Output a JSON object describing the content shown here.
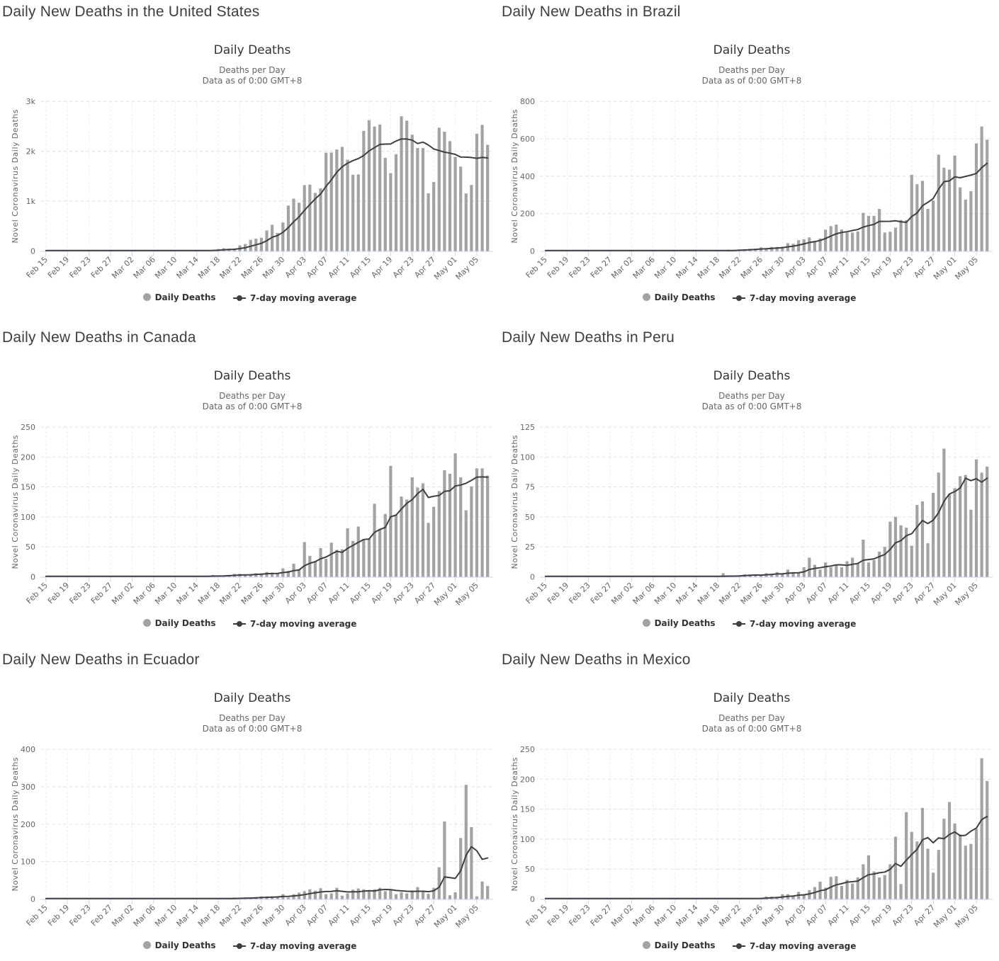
{
  "chart_common": {
    "title": "Daily Deaths",
    "subtitle_line1": "Deaths per Day",
    "subtitle_line2": "Data as of 0:00 GMT+8",
    "y_axis_title": "Novel Coronavirus Daily Deaths",
    "legend_daily": "Daily Deaths",
    "legend_ma": "7-day moving average",
    "x_tick_labels": [
      "Feb 15",
      "Feb 19",
      "Feb 23",
      "Feb 27",
      "Mar 02",
      "Mar 06",
      "Mar 10",
      "Mar 14",
      "Mar 18",
      "Mar 22",
      "Mar 26",
      "Mar 30",
      "Apr 03",
      "Apr 07",
      "Apr 11",
      "Apr 15",
      "Apr 19",
      "Apr 23",
      "Apr 27",
      "May 01",
      "May 05"
    ],
    "x_tick_step_days": 4,
    "date_start": "Feb 15",
    "date_end": "May 07",
    "colors": {
      "bar": "#a3a3a3",
      "moving_average_line": "#3f3f3f",
      "title": "#333333",
      "subtitle": "#666666",
      "axis_labels": "#666666",
      "axis_line": "#ccd6eb",
      "gridline": "#e2e2e2",
      "vertical_gridline": "#ececec",
      "heading": "#3e3e42",
      "legend_text": "#333333"
    }
  },
  "chart_data": [
    {
      "type": "bar",
      "country": "United States",
      "heading": "Daily New Deaths in the United States",
      "title": "Daily Deaths",
      "xlabel": "",
      "ylabel": "Novel Coronavirus Daily Deaths",
      "ylim": [
        0,
        3000
      ],
      "y_ticks": [
        0,
        1000,
        2000,
        3000
      ],
      "y_tick_labels": [
        "0",
        "1k",
        "2k",
        "3k"
      ],
      "series": [
        {
          "name": "Daily Deaths",
          "values": [
            0,
            0,
            0,
            0,
            0,
            0,
            0,
            0,
            0,
            0,
            0,
            0,
            0,
            0,
            1,
            1,
            4,
            3,
            2,
            1,
            3,
            4,
            3,
            4,
            4,
            8,
            3,
            9,
            11,
            11,
            18,
            23,
            41,
            57,
            49,
            46,
            113,
            140,
            225,
            247,
            268,
            411,
            525,
            363,
            573,
            912,
            1049,
            968,
            1321,
            1331,
            1165,
            1255,
            1970,
            1973,
            2035,
            2087,
            1830,
            1528,
            1535,
            2407,
            2621,
            2494,
            2535,
            1867,
            1561,
            1939,
            2699,
            2613,
            2331,
            2065,
            2065,
            1157,
            1384,
            2470,
            2390,
            2201,
            1883,
            1691,
            1154,
            1324,
            2350,
            2528,
            2129
          ]
        },
        {
          "name": "7-day moving average",
          "derived": "trailing 7-day mean of Daily Deaths"
        }
      ]
    },
    {
      "type": "bar",
      "country": "Brazil",
      "heading": "Daily New Deaths in Brazil",
      "title": "Daily Deaths",
      "xlabel": "",
      "ylabel": "Novel Coronavirus Daily Deaths",
      "ylim": [
        0,
        800
      ],
      "y_ticks": [
        0,
        200,
        400,
        600,
        800
      ],
      "y_tick_labels": [
        "0",
        "200",
        "400",
        "600",
        "800"
      ],
      "series": [
        {
          "name": "Daily Deaths",
          "values": [
            0,
            0,
            0,
            0,
            0,
            0,
            0,
            0,
            0,
            0,
            0,
            0,
            0,
            0,
            0,
            0,
            0,
            0,
            0,
            0,
            0,
            0,
            0,
            0,
            0,
            0,
            0,
            0,
            0,
            0,
            0,
            1,
            2,
            3,
            7,
            7,
            9,
            9,
            12,
            13,
            20,
            15,
            22,
            22,
            23,
            42,
            39,
            58,
            63,
            73,
            54,
            67,
            114,
            133,
            141,
            115,
            99,
            99,
            105,
            204,
            188,
            188,
            225,
            99,
            103,
            125,
            166,
            165,
            407,
            357,
            375,
            225,
            270,
            515,
            445,
            435,
            510,
            340,
            275,
            320,
            575,
            665,
            595
          ]
        },
        {
          "name": "7-day moving average",
          "derived": "trailing 7-day mean of Daily Deaths"
        }
      ]
    },
    {
      "type": "bar",
      "country": "Canada",
      "heading": "Daily New Deaths in Canada",
      "title": "Daily Deaths",
      "xlabel": "",
      "ylabel": "Novel Coronavirus Daily Deaths",
      "ylim": [
        0,
        250
      ],
      "y_ticks": [
        0,
        50,
        100,
        150,
        200,
        250
      ],
      "y_tick_labels": [
        "0",
        "50",
        "100",
        "150",
        "200",
        "250"
      ],
      "series": [
        {
          "name": "Daily Deaths",
          "values": [
            0,
            0,
            0,
            0,
            0,
            0,
            0,
            0,
            0,
            0,
            0,
            0,
            0,
            0,
            0,
            0,
            0,
            0,
            0,
            0,
            0,
            0,
            1,
            1,
            0,
            1,
            1,
            0,
            1,
            1,
            1,
            3,
            2,
            2,
            3,
            5,
            5,
            3,
            4,
            6,
            5,
            8,
            7,
            6,
            14,
            10,
            22,
            13,
            58,
            35,
            25,
            48,
            30,
            57,
            45,
            46,
            81,
            60,
            84,
            63,
            63,
            122,
            80,
            105,
            185,
            103,
            134,
            129,
            166,
            149,
            156,
            90,
            117,
            143,
            178,
            172,
            206,
            166,
            111,
            151,
            181,
            181,
            169
          ]
        },
        {
          "name": "7-day moving average",
          "derived": "trailing 7-day mean of Daily Deaths"
        }
      ]
    },
    {
      "type": "bar",
      "country": "Peru",
      "heading": "Daily New Deaths in Peru",
      "title": "Daily Deaths",
      "xlabel": "",
      "ylabel": "Novel Coronavirus Daily Deaths",
      "ylim": [
        0,
        125
      ],
      "y_ticks": [
        0,
        25,
        50,
        75,
        100,
        125
      ],
      "y_tick_labels": [
        "0",
        "25",
        "50",
        "75",
        "100",
        "125"
      ],
      "series": [
        {
          "name": "Daily Deaths",
          "values": [
            0,
            0,
            0,
            0,
            0,
            0,
            0,
            0,
            0,
            0,
            0,
            0,
            0,
            0,
            0,
            0,
            0,
            0,
            0,
            0,
            0,
            0,
            0,
            0,
            0,
            0,
            0,
            0,
            0,
            0,
            0,
            0,
            0,
            3,
            1,
            0,
            1,
            2,
            2,
            2,
            2,
            3,
            2,
            4,
            2,
            6,
            4,
            3,
            8,
            16,
            10,
            6,
            12,
            8,
            10,
            8,
            13,
            16,
            11,
            31,
            12,
            14,
            21,
            25,
            46,
            50,
            43,
            41,
            26,
            60,
            63,
            28,
            70,
            87,
            107,
            69,
            74,
            84,
            85,
            56,
            98,
            87,
            92
          ]
        },
        {
          "name": "7-day moving average",
          "derived": "trailing 7-day mean of Daily Deaths"
        }
      ]
    },
    {
      "type": "bar",
      "country": "Ecuador",
      "heading": "Daily New Deaths in Ecuador",
      "title": "Daily Deaths",
      "xlabel": "",
      "ylabel": "Novel Coronavirus Daily Deaths",
      "ylim": [
        0,
        400
      ],
      "y_ticks": [
        0,
        100,
        200,
        300,
        400
      ],
      "y_tick_labels": [
        "0",
        "100",
        "200",
        "300",
        "400"
      ],
      "series": [
        {
          "name": "Daily Deaths",
          "values": [
            0,
            0,
            0,
            0,
            0,
            0,
            0,
            0,
            0,
            0,
            0,
            0,
            0,
            0,
            0,
            0,
            0,
            0,
            0,
            0,
            0,
            0,
            0,
            0,
            0,
            0,
            0,
            0,
            1,
            0,
            1,
            0,
            1,
            1,
            3,
            4,
            3,
            4,
            2,
            5,
            7,
            7,
            7,
            7,
            13,
            4,
            13,
            17,
            21,
            26,
            22,
            29,
            13,
            15,
            30,
            9,
            15,
            25,
            28,
            26,
            22,
            26,
            30,
            21,
            23,
            13,
            18,
            15,
            23,
            32,
            22,
            14,
            30,
            85,
            207,
            10,
            18,
            163,
            305,
            192,
            7,
            47,
            35
          ]
        },
        {
          "name": "7-day moving average",
          "derived": "trailing 7-day mean of Daily Deaths"
        }
      ]
    },
    {
      "type": "bar",
      "country": "Mexico",
      "heading": "Daily New Deaths in Mexico",
      "title": "Daily Deaths",
      "xlabel": "",
      "ylabel": "Novel Coronavirus Daily Deaths",
      "ylim": [
        0,
        250
      ],
      "y_ticks": [
        0,
        50,
        100,
        150,
        200,
        250
      ],
      "y_tick_labels": [
        "0",
        "50",
        "100",
        "150",
        "200",
        "250"
      ],
      "series": [
        {
          "name": "Daily Deaths",
          "values": [
            0,
            0,
            0,
            0,
            0,
            0,
            0,
            0,
            0,
            0,
            0,
            0,
            0,
            0,
            0,
            0,
            0,
            0,
            0,
            0,
            0,
            0,
            0,
            0,
            0,
            0,
            0,
            0,
            0,
            0,
            0,
            0,
            1,
            1,
            1,
            0,
            1,
            1,
            1,
            1,
            2,
            4,
            4,
            4,
            8,
            8,
            5,
            12,
            8,
            15,
            20,
            29,
            19,
            37,
            38,
            22,
            32,
            26,
            36,
            58,
            73,
            46,
            36,
            40,
            58,
            104,
            25,
            145,
            112,
            96,
            152,
            84,
            44,
            82,
            134,
            162,
            126,
            108,
            89,
            92,
            117,
            235,
            197
          ]
        },
        {
          "name": "7-day moving average",
          "derived": "trailing 7-day mean of Daily Deaths"
        }
      ]
    }
  ]
}
